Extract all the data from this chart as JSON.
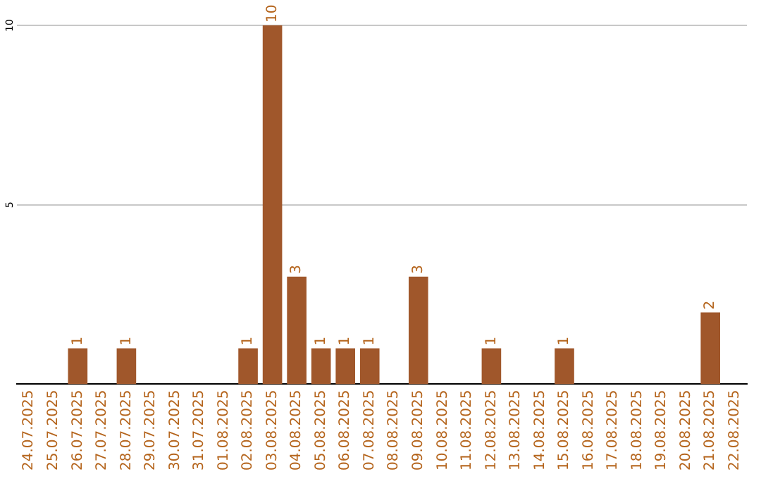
{
  "chart_data": {
    "type": "bar",
    "categories": [
      "24.07.2025",
      "25.07.2025",
      "26.07.2025",
      "27.07.2025",
      "28.07.2025",
      "29.07.2025",
      "30.07.2025",
      "31.07.2025",
      "01.08.2025",
      "02.08.2025",
      "03.08.2025",
      "04.08.2025",
      "05.08.2025",
      "06.08.2025",
      "07.08.2025",
      "08.08.2025",
      "09.08.2025",
      "10.08.2025",
      "11.08.2025",
      "12.08.2025",
      "13.08.2025",
      "14.08.2025",
      "15.08.2025",
      "16.08.2025",
      "17.08.2025",
      "18.08.2025",
      "19.08.2025",
      "20.08.2025",
      "21.08.2025",
      "22.08.2025"
    ],
    "values": [
      0,
      0,
      1,
      0,
      1,
      0,
      0,
      0,
      0,
      1,
      10,
      3,
      1,
      1,
      1,
      0,
      3,
      0,
      0,
      1,
      0,
      0,
      1,
      0,
      0,
      0,
      0,
      0,
      2,
      0
    ],
    "value_labels": [
      null,
      null,
      "1",
      null,
      "1",
      null,
      null,
      null,
      null,
      "1",
      "10",
      "3",
      "1",
      "1",
      "1",
      null,
      "3",
      null,
      null,
      "1",
      null,
      null,
      "1",
      null,
      null,
      null,
      null,
      null,
      "2",
      null
    ],
    "color": "#a0572b",
    "ylim": [
      0,
      10
    ],
    "yticks": [
      5,
      10
    ],
    "grid": "y",
    "legend": false
  }
}
